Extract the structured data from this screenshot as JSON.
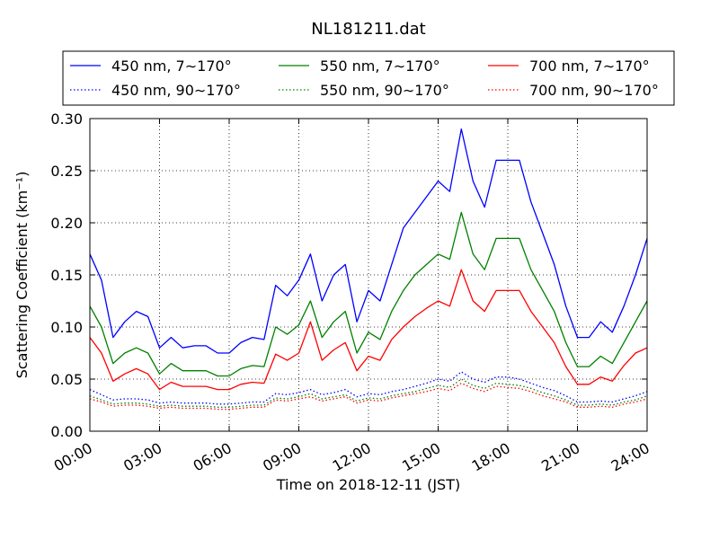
{
  "chart_data": {
    "type": "line",
    "title": "NL181211.dat",
    "xlabel": "Time on 2018-12-11 (JST)",
    "ylabel": "Scattering Coefficient (km⁻¹)",
    "xlim": [
      "2018-12-11 00:00",
      "2018-12-12 00:00"
    ],
    "ylim": [
      0,
      0.3
    ],
    "x_ticks": [
      "00:00",
      "03:00",
      "06:00",
      "09:00",
      "12:00",
      "15:00",
      "18:00",
      "21:00",
      "24:00"
    ],
    "y_ticks": [
      "0.00",
      "0.05",
      "0.10",
      "0.15",
      "0.20",
      "0.25",
      "0.30"
    ],
    "grid": true,
    "legend_position": "top (above plot, 3 columns)",
    "x_hours": [
      0,
      0.5,
      1,
      1.5,
      2,
      2.5,
      3,
      3.5,
      4,
      4.5,
      5,
      5.5,
      6,
      6.5,
      7,
      7.5,
      8,
      8.5,
      9,
      9.5,
      10,
      10.5,
      11,
      11.5,
      12,
      12.5,
      13,
      13.5,
      14,
      14.5,
      15,
      15.5,
      16,
      16.5,
      17,
      17.5,
      18,
      18.5,
      19,
      19.5,
      20,
      20.5,
      21,
      21.5,
      22,
      22.5,
      23,
      23.5,
      24
    ],
    "series": [
      {
        "name": "450 nm, 7∼170°",
        "color": "#0000ff",
        "style": "solid",
        "values": [
          0.17,
          0.145,
          0.09,
          0.105,
          0.115,
          0.11,
          0.08,
          0.09,
          0.08,
          0.082,
          0.082,
          0.075,
          0.075,
          0.085,
          0.09,
          0.088,
          0.14,
          0.13,
          0.145,
          0.17,
          0.125,
          0.15,
          0.16,
          0.105,
          0.135,
          0.125,
          0.16,
          0.195,
          0.21,
          0.225,
          0.24,
          0.23,
          0.29,
          0.24,
          0.215,
          0.26,
          0.26,
          0.26,
          0.22,
          0.19,
          0.16,
          0.12,
          0.09,
          0.09,
          0.105,
          0.095,
          0.12,
          0.15,
          0.185
        ]
      },
      {
        "name": "550 nm, 7∼170°",
        "color": "#008000",
        "style": "solid",
        "values": [
          0.12,
          0.1,
          0.065,
          0.075,
          0.08,
          0.075,
          0.055,
          0.065,
          0.058,
          0.058,
          0.058,
          0.053,
          0.053,
          0.06,
          0.063,
          0.062,
          0.1,
          0.093,
          0.102,
          0.125,
          0.09,
          0.105,
          0.115,
          0.075,
          0.095,
          0.088,
          0.115,
          0.135,
          0.15,
          0.16,
          0.17,
          0.165,
          0.21,
          0.17,
          0.155,
          0.185,
          0.185,
          0.185,
          0.155,
          0.135,
          0.115,
          0.085,
          0.062,
          0.062,
          0.072,
          0.065,
          0.085,
          0.105,
          0.125
        ]
      },
      {
        "name": "700 nm, 7∼170°",
        "color": "#ff0000",
        "style": "solid",
        "values": [
          0.09,
          0.075,
          0.048,
          0.055,
          0.06,
          0.055,
          0.04,
          0.047,
          0.043,
          0.043,
          0.043,
          0.04,
          0.04,
          0.045,
          0.047,
          0.046,
          0.074,
          0.068,
          0.075,
          0.105,
          0.068,
          0.078,
          0.085,
          0.058,
          0.072,
          0.068,
          0.088,
          0.1,
          0.11,
          0.118,
          0.125,
          0.12,
          0.155,
          0.125,
          0.115,
          0.135,
          0.135,
          0.135,
          0.115,
          0.1,
          0.085,
          0.062,
          0.045,
          0.045,
          0.052,
          0.048,
          0.063,
          0.075,
          0.08
        ]
      },
      {
        "name": "450 nm, 90∼170°",
        "color": "#0000ff",
        "style": "dotted",
        "values": [
          0.04,
          0.035,
          0.03,
          0.031,
          0.031,
          0.03,
          0.027,
          0.028,
          0.027,
          0.027,
          0.027,
          0.026,
          0.026,
          0.027,
          0.028,
          0.028,
          0.036,
          0.035,
          0.037,
          0.04,
          0.035,
          0.037,
          0.04,
          0.033,
          0.036,
          0.035,
          0.038,
          0.04,
          0.043,
          0.046,
          0.05,
          0.048,
          0.057,
          0.05,
          0.047,
          0.052,
          0.052,
          0.05,
          0.046,
          0.042,
          0.039,
          0.034,
          0.028,
          0.028,
          0.029,
          0.028,
          0.031,
          0.034,
          0.038
        ]
      },
      {
        "name": "550 nm, 90∼170°",
        "color": "#008000",
        "style": "dotted",
        "values": [
          0.034,
          0.03,
          0.026,
          0.027,
          0.027,
          0.026,
          0.024,
          0.025,
          0.024,
          0.024,
          0.024,
          0.023,
          0.023,
          0.024,
          0.025,
          0.025,
          0.032,
          0.031,
          0.033,
          0.036,
          0.031,
          0.033,
          0.035,
          0.029,
          0.032,
          0.031,
          0.034,
          0.036,
          0.038,
          0.041,
          0.044,
          0.042,
          0.05,
          0.044,
          0.041,
          0.046,
          0.045,
          0.044,
          0.041,
          0.037,
          0.034,
          0.03,
          0.025,
          0.025,
          0.026,
          0.025,
          0.028,
          0.03,
          0.034
        ]
      },
      {
        "name": "700 nm, 90∼170°",
        "color": "#ff0000",
        "style": "dotted",
        "values": [
          0.031,
          0.028,
          0.024,
          0.025,
          0.025,
          0.024,
          0.022,
          0.023,
          0.022,
          0.022,
          0.022,
          0.021,
          0.021,
          0.022,
          0.023,
          0.023,
          0.03,
          0.029,
          0.031,
          0.033,
          0.029,
          0.031,
          0.033,
          0.027,
          0.03,
          0.029,
          0.032,
          0.034,
          0.036,
          0.038,
          0.041,
          0.039,
          0.046,
          0.041,
          0.038,
          0.043,
          0.042,
          0.041,
          0.038,
          0.034,
          0.031,
          0.028,
          0.023,
          0.023,
          0.024,
          0.023,
          0.026,
          0.028,
          0.031
        ]
      }
    ]
  }
}
